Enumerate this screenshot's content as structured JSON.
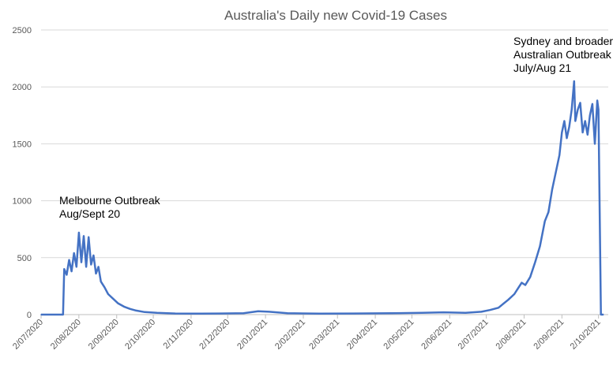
{
  "chart_data": {
    "type": "line",
    "title": "Australia's Daily new Covid-19 Cases",
    "xlabel": "",
    "ylabel": "",
    "ylim": [
      0,
      2500
    ],
    "yticks": [
      "0",
      "500",
      "1000",
      "1500",
      "2000",
      "2500"
    ],
    "grid": "horizontal",
    "legend": "none",
    "line_color": "#4472c4",
    "x_tick_labels": [
      "2/07/2020",
      "2/08/2020",
      "2/09/2020",
      "2/10/2020",
      "2/11/2020",
      "2/12/2020",
      "2/01/2021",
      "2/02/2021",
      "2/03/2021",
      "2/04/2021",
      "2/05/2021",
      "2/06/2021",
      "2/07/2021",
      "2/08/2021",
      "2/09/2021",
      "2/10/2021"
    ],
    "annotations": [
      {
        "lines": [
          "Melbourne Outbreak",
          "Aug/Sept 20"
        ]
      },
      {
        "lines": [
          "Sydney and broader",
          "Australian Outbreak",
          "July/Aug 21"
        ]
      }
    ],
    "series": [
      {
        "points": [
          [
            "2020-07-02",
            0
          ],
          [
            "2020-07-20",
            0
          ],
          [
            "2020-07-21",
            400
          ],
          [
            "2020-07-23",
            350
          ],
          [
            "2020-07-25",
            480
          ],
          [
            "2020-07-27",
            380
          ],
          [
            "2020-07-29",
            540
          ],
          [
            "2020-07-31",
            420
          ],
          [
            "2020-08-02",
            720
          ],
          [
            "2020-08-04",
            460
          ],
          [
            "2020-08-06",
            690
          ],
          [
            "2020-08-08",
            420
          ],
          [
            "2020-08-10",
            680
          ],
          [
            "2020-08-12",
            440
          ],
          [
            "2020-08-14",
            520
          ],
          [
            "2020-08-16",
            360
          ],
          [
            "2020-08-18",
            420
          ],
          [
            "2020-08-20",
            290
          ],
          [
            "2020-08-23",
            240
          ],
          [
            "2020-08-26",
            180
          ],
          [
            "2020-08-30",
            140
          ],
          [
            "2020-09-03",
            100
          ],
          [
            "2020-09-08",
            70
          ],
          [
            "2020-09-13",
            50
          ],
          [
            "2020-09-18",
            35
          ],
          [
            "2020-09-25",
            22
          ],
          [
            "2020-10-05",
            15
          ],
          [
            "2020-10-20",
            10
          ],
          [
            "2020-11-05",
            8
          ],
          [
            "2020-11-25",
            10
          ],
          [
            "2020-12-15",
            12
          ],
          [
            "2020-12-27",
            30
          ],
          [
            "2021-01-05",
            25
          ],
          [
            "2021-01-20",
            12
          ],
          [
            "2021-02-15",
            8
          ],
          [
            "2021-03-15",
            10
          ],
          [
            "2021-04-15",
            12
          ],
          [
            "2021-05-10",
            15
          ],
          [
            "2021-05-28",
            20
          ],
          [
            "2021-06-15",
            15
          ],
          [
            "2021-06-28",
            25
          ],
          [
            "2021-07-05",
            40
          ],
          [
            "2021-07-12",
            60
          ],
          [
            "2021-07-20",
            130
          ],
          [
            "2021-07-25",
            180
          ],
          [
            "2021-07-28",
            230
          ],
          [
            "2021-07-31",
            280
          ],
          [
            "2021-08-03",
            260
          ],
          [
            "2021-08-07",
            330
          ],
          [
            "2021-08-11",
            460
          ],
          [
            "2021-08-15",
            600
          ],
          [
            "2021-08-19",
            820
          ],
          [
            "2021-08-22",
            900
          ],
          [
            "2021-08-25",
            1100
          ],
          [
            "2021-08-28",
            1250
          ],
          [
            "2021-08-31",
            1400
          ],
          [
            "2021-09-02",
            1600
          ],
          [
            "2021-09-04",
            1700
          ],
          [
            "2021-09-06",
            1550
          ],
          [
            "2021-09-08",
            1650
          ],
          [
            "2021-09-10",
            1800
          ],
          [
            "2021-09-12",
            2050
          ],
          [
            "2021-09-13",
            1700
          ],
          [
            "2021-09-15",
            1800
          ],
          [
            "2021-09-17",
            1860
          ],
          [
            "2021-09-19",
            1600
          ],
          [
            "2021-09-21",
            1700
          ],
          [
            "2021-09-23",
            1580
          ],
          [
            "2021-09-25",
            1750
          ],
          [
            "2021-09-27",
            1850
          ],
          [
            "2021-09-29",
            1500
          ],
          [
            "2021-10-01",
            1880
          ],
          [
            "2021-10-02",
            1800
          ],
          [
            "2021-10-04",
            0
          ],
          [
            "2021-10-06",
            0
          ]
        ]
      }
    ]
  }
}
